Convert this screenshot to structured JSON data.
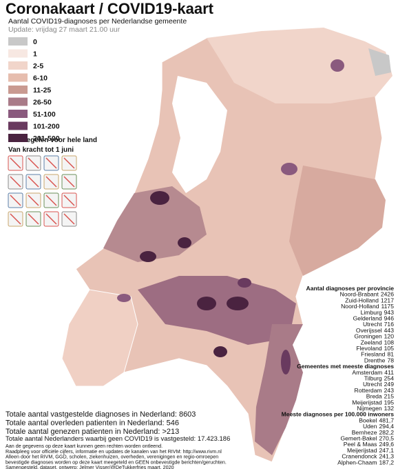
{
  "header": {
    "title": "Coronakaart / COVID19-kaart",
    "subtitle": "Aantal COVID19-diagnoses per Nederlandse gemeente",
    "update": "Update: vrijdag 27 maart 21.00 uur"
  },
  "legend": [
    {
      "label": "0",
      "color": "#c8c8c8"
    },
    {
      "label": "1",
      "color": "#f7e8e2"
    },
    {
      "label": "2-5",
      "color": "#f1d5ca"
    },
    {
      "label": "6-10",
      "color": "#e6bdae"
    },
    {
      "label": "11-25",
      "color": "#c99a91"
    },
    {
      "label": "26-50",
      "color": "#a97b88"
    },
    {
      "label": "51-100",
      "color": "#8a5a7e"
    },
    {
      "label": "101-200",
      "color": "#693a5f"
    },
    {
      "label": "201-500",
      "color": "#4a2340"
    }
  ],
  "measures": {
    "title": "Maatregelen voor hele land",
    "subtitle": "Van kracht tot 1 juni"
  },
  "provinces": {
    "title": "Aantal diagnoses per provincie",
    "rows": [
      {
        "name": "Noord-Brabant",
        "value": 2426
      },
      {
        "name": "Zuid-Holland",
        "value": 1217
      },
      {
        "name": "Noord-Holland",
        "value": 1175
      },
      {
        "name": "Limburg",
        "value": 943
      },
      {
        "name": "Gelderland",
        "value": 946
      },
      {
        "name": "Utrecht",
        "value": 716
      },
      {
        "name": "Overijssel",
        "value": 443
      },
      {
        "name": "Groningen",
        "value": 120
      },
      {
        "name": "Zeeland",
        "value": 108
      },
      {
        "name": "Flevoland",
        "value": 105
      },
      {
        "name": "Friesland",
        "value": 81
      },
      {
        "name": "Drenthe",
        "value": 78
      }
    ]
  },
  "municipalities": {
    "title": "Gemeentes met meeste diagnoses",
    "rows": [
      {
        "name": "Amsterdam",
        "value": 411
      },
      {
        "name": "Tilburg",
        "value": 254
      },
      {
        "name": "Utrecht",
        "value": 249
      },
      {
        "name": "Rotterdam",
        "value": 243
      },
      {
        "name": "Breda",
        "value": 215
      },
      {
        "name": "Meijerijstad",
        "value": 195
      },
      {
        "name": "Nijmegen",
        "value": 132
      }
    ]
  },
  "per_100k": {
    "title": "Meeste diagnoses per 100.000 inwoners",
    "rows": [
      {
        "name": "Boekel",
        "value": "481,7"
      },
      {
        "name": "Uden",
        "value": "294,4"
      },
      {
        "name": "Bernheze",
        "value": "282,2"
      },
      {
        "name": "Gemert-Bakel",
        "value": "270,5"
      },
      {
        "name": "Peel & Maas",
        "value": "249,6"
      },
      {
        "name": "Meijerijstad",
        "value": "247,1"
      },
      {
        "name": "Cranendonck",
        "value": "241,3"
      },
      {
        "name": "Alphen-Chaam",
        "value": "187,2"
      }
    ]
  },
  "totals": [
    "Totale aantal vastgestelde diagnoses in Nederland: 8603",
    "Totale aantal overleden patienten in Nederland: 546",
    "Totale aantal genezen patienten in Nederland: >213"
  ],
  "footer": {
    "headline": "Totale aantal Nederlanders waarbij geen COVID19 is vastgesteld: 17.423.186",
    "lines": [
      "Aan de gegevens op deze kaart kunnen geen rechten worden ontleend.",
      "Raadpleeg voor officiële cijfers, informatie en updates de kanalen van het RIVM: http://www.rivm.nl",
      "Alleen door het RIVM, GGD, scholen, ziekenhuizen, overheden, verenigingen en regio-omroepen",
      "bevestigde diagnoses worden op deze kaart meegeteld en GEEN onbevestigde berichten/geruchten.",
      "Samengesteld, dataset, ontwerp: Jelmer Visser/@DeTukkerfries maart, 2020"
    ]
  }
}
